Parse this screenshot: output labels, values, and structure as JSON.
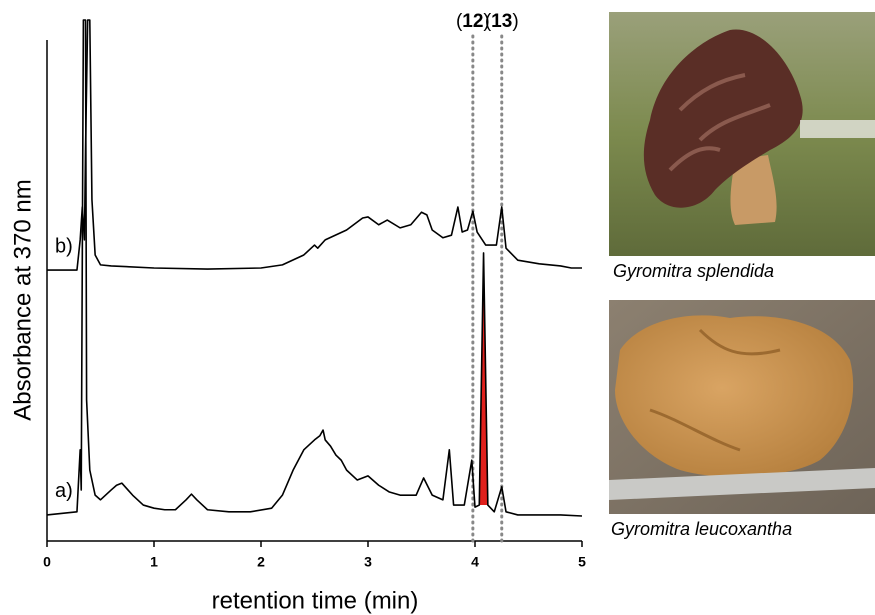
{
  "chart_data": {
    "type": "line",
    "xlabel": "retention time (min)",
    "ylabel": "Absorbance at 370 nm",
    "xlim": [
      0,
      5
    ],
    "xticks": [
      0,
      1,
      2,
      3,
      4,
      5
    ],
    "ylim": [
      0,
      100
    ],
    "annotations": [
      {
        "label": "(12)",
        "x": 3.98
      },
      {
        "label": "(13)",
        "x": 4.25
      }
    ],
    "series": [
      {
        "name": "b)",
        "color": "#000000",
        "x": [
          0,
          0.28,
          0.31,
          0.33,
          0.35,
          0.36,
          0.38,
          0.4,
          0.42,
          0.45,
          0.5,
          0.6,
          1.0,
          1.5,
          2.0,
          2.2,
          2.4,
          2.5,
          2.53,
          2.6,
          2.8,
          2.95,
          3.0,
          3.1,
          3.18,
          3.3,
          3.4,
          3.5,
          3.55,
          3.6,
          3.7,
          3.78,
          3.84,
          3.88,
          3.93,
          3.98,
          4.02,
          4.1,
          4.2,
          4.25,
          4.29,
          4.4,
          4.6,
          4.8,
          4.9,
          5.0
        ],
        "values": [
          52.0,
          52.0,
          57.8,
          64.1,
          57.8,
          75.0,
          100,
          100,
          65.5,
          54.9,
          53.0,
          52.8,
          52.4,
          52.2,
          52.4,
          53.0,
          54.9,
          56.8,
          56.2,
          57.8,
          59.7,
          62.0,
          62.2,
          60.7,
          61.6,
          60.1,
          60.7,
          63.1,
          62.6,
          59.7,
          58.2,
          58.7,
          64.1,
          59.3,
          59.7,
          63.3,
          59.3,
          56.8,
          56.8,
          64.1,
          56.2,
          53.9,
          53.2,
          52.8,
          52.4,
          52.4
        ]
      },
      {
        "name": "a)",
        "color": "#000000",
        "fill_color": "#e0201c",
        "fill_from": 4.04,
        "fill_to": 4.12,
        "x": [
          0,
          0.28,
          0.31,
          0.32,
          0.34,
          0.36,
          0.37,
          0.4,
          0.45,
          0.5,
          0.6,
          0.65,
          0.7,
          0.8,
          0.9,
          1.0,
          1.1,
          1.2,
          1.3,
          1.35,
          1.4,
          1.5,
          1.7,
          1.9,
          2.1,
          2.2,
          2.3,
          2.4,
          2.5,
          2.55,
          2.58,
          2.6,
          2.65,
          2.7,
          2.75,
          2.8,
          2.9,
          3.0,
          3.1,
          3.2,
          3.3,
          3.45,
          3.52,
          3.6,
          3.7,
          3.76,
          3.8,
          3.9,
          3.97,
          4.0,
          4.04,
          4.08,
          4.12,
          4.18,
          4.25,
          4.29,
          4.4,
          4.6,
          4.8,
          5.0
        ],
        "values": [
          5.0,
          5.6,
          17.5,
          9.8,
          100,
          100,
          27.1,
          13.6,
          8.8,
          7.9,
          9.8,
          10.7,
          11.1,
          8.8,
          6.9,
          6.3,
          6.0,
          6.0,
          7.9,
          9.0,
          7.9,
          6.0,
          5.6,
          5.6,
          6.3,
          8.8,
          13.6,
          17.5,
          19.4,
          20.2,
          21.3,
          19.4,
          18.2,
          16.5,
          15.5,
          13.6,
          11.7,
          12.5,
          10.7,
          9.4,
          8.8,
          8.8,
          12.1,
          8.8,
          7.9,
          17.5,
          6.9,
          6.9,
          15.5,
          6.5,
          6.9,
          55.3,
          6.9,
          5.6,
          10.4,
          5.6,
          5.0,
          5.0,
          5.0,
          4.8
        ]
      }
    ]
  },
  "photos": [
    {
      "caption": "Gyromitra splendida"
    },
    {
      "caption": "Gyromitra leucoxantha"
    }
  ]
}
